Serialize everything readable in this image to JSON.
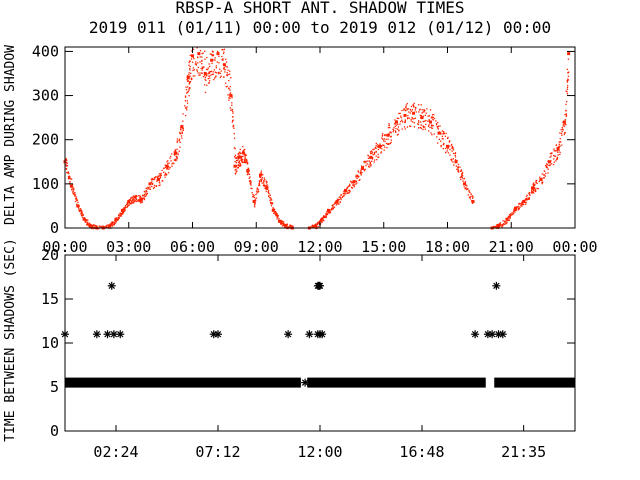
{
  "chart_data": [
    {
      "type": "scatter",
      "title_line1": "RBSP-A SHORT ANT. SHADOW TIMES",
      "title_line2": "2019 011 (01/11) 00:00 to 2019 012 (01/12) 00:00",
      "ylabel": "DELTA AMP DURING SHADOW",
      "xlim": [
        0,
        24
      ],
      "ylim": [
        0,
        410
      ],
      "x_tick_labels": [
        "00:00",
        "03:00",
        "06:00",
        "09:00",
        "12:00",
        "15:00",
        "18:00",
        "21:00",
        "00:00"
      ],
      "x_ticks_hours": [
        0,
        3,
        6,
        9,
        12,
        15,
        18,
        21,
        24
      ],
      "y_tick_labels": [
        "0",
        "100",
        "200",
        "300",
        "400"
      ],
      "y_ticks": [
        0,
        100,
        200,
        300,
        400
      ],
      "marker_color": "#ff2200",
      "series": [
        {
          "x": [
            0.0,
            0.3,
            0.6,
            0.9,
            1.2,
            1.5,
            1.8,
            2.1,
            2.4,
            2.7,
            3.0,
            3.3,
            3.6,
            4.0,
            4.4,
            4.8,
            5.2,
            5.5,
            5.8,
            6.0,
            6.3,
            6.6,
            6.9,
            7.2,
            7.5,
            7.8,
            8.0,
            8.2,
            8.4,
            8.6,
            8.9,
            9.2,
            9.5,
            9.8,
            10.1,
            10.4,
            10.7,
            11.5,
            11.8,
            12.1,
            12.4,
            12.8,
            13.2,
            13.6,
            14.0,
            14.4,
            14.8,
            15.2,
            15.6,
            16.0,
            16.4,
            16.8,
            17.2,
            17.6,
            18.0,
            18.4,
            18.8,
            19.2,
            20.1,
            20.4,
            20.8,
            21.2,
            21.6,
            22.0,
            22.4,
            22.8,
            23.2,
            23.5,
            23.7
          ],
          "y": [
            150,
            95,
            50,
            20,
            5,
            0,
            0,
            5,
            20,
            40,
            60,
            70,
            65,
            100,
            110,
            140,
            170,
            230,
            340,
            390,
            395,
            350,
            380,
            395,
            370,
            300,
            140,
            160,
            170,
            130,
            60,
            120,
            90,
            40,
            15,
            5,
            0,
            0,
            5,
            20,
            40,
            60,
            85,
            105,
            135,
            160,
            185,
            210,
            240,
            255,
            260,
            250,
            240,
            215,
            185,
            150,
            100,
            60,
            0,
            5,
            20,
            45,
            60,
            90,
            110,
            150,
            180,
            240,
            395
          ]
        }
      ]
    },
    {
      "type": "scatter",
      "ylabel": "TIME BETWEEN SHADOWS (SEC)",
      "xlim": [
        0,
        24
      ],
      "ylim": [
        0,
        20
      ],
      "x_tick_labels": [
        "02:24",
        "07:12",
        "12:00",
        "16:48",
        "21:35"
      ],
      "x_ticks_hours": [
        2.4,
        7.2,
        12.0,
        16.8,
        21.5833
      ],
      "y_tick_labels": [
        "0",
        "5",
        "10",
        "15",
        "20"
      ],
      "y_ticks": [
        0,
        5,
        10,
        15,
        20
      ],
      "marker": "asterisk",
      "marker_color": "#000000",
      "baseline_value": 5.5,
      "baseline_segments": [
        [
          0.0,
          11.1
        ],
        [
          11.4,
          19.8
        ],
        [
          20.2,
          24.0
        ]
      ],
      "series": [
        {
          "x": [
            0.0,
            1.5,
            2.0,
            2.3,
            2.6,
            2.2,
            7.0,
            7.2,
            10.5,
            11.3,
            11.5,
            11.9,
            12.0,
            12.1,
            11.9,
            11.95,
            12.0,
            19.3,
            19.9,
            20.1,
            20.4,
            20.6,
            20.3,
            2.1
          ],
          "y": [
            11,
            11,
            11,
            11,
            11,
            16.5,
            11,
            11,
            11,
            5.5,
            11,
            11,
            11,
            11,
            16.5,
            16.5,
            16.5,
            11,
            11,
            11,
            11,
            11,
            16.5,
            5.5
          ]
        }
      ]
    }
  ]
}
